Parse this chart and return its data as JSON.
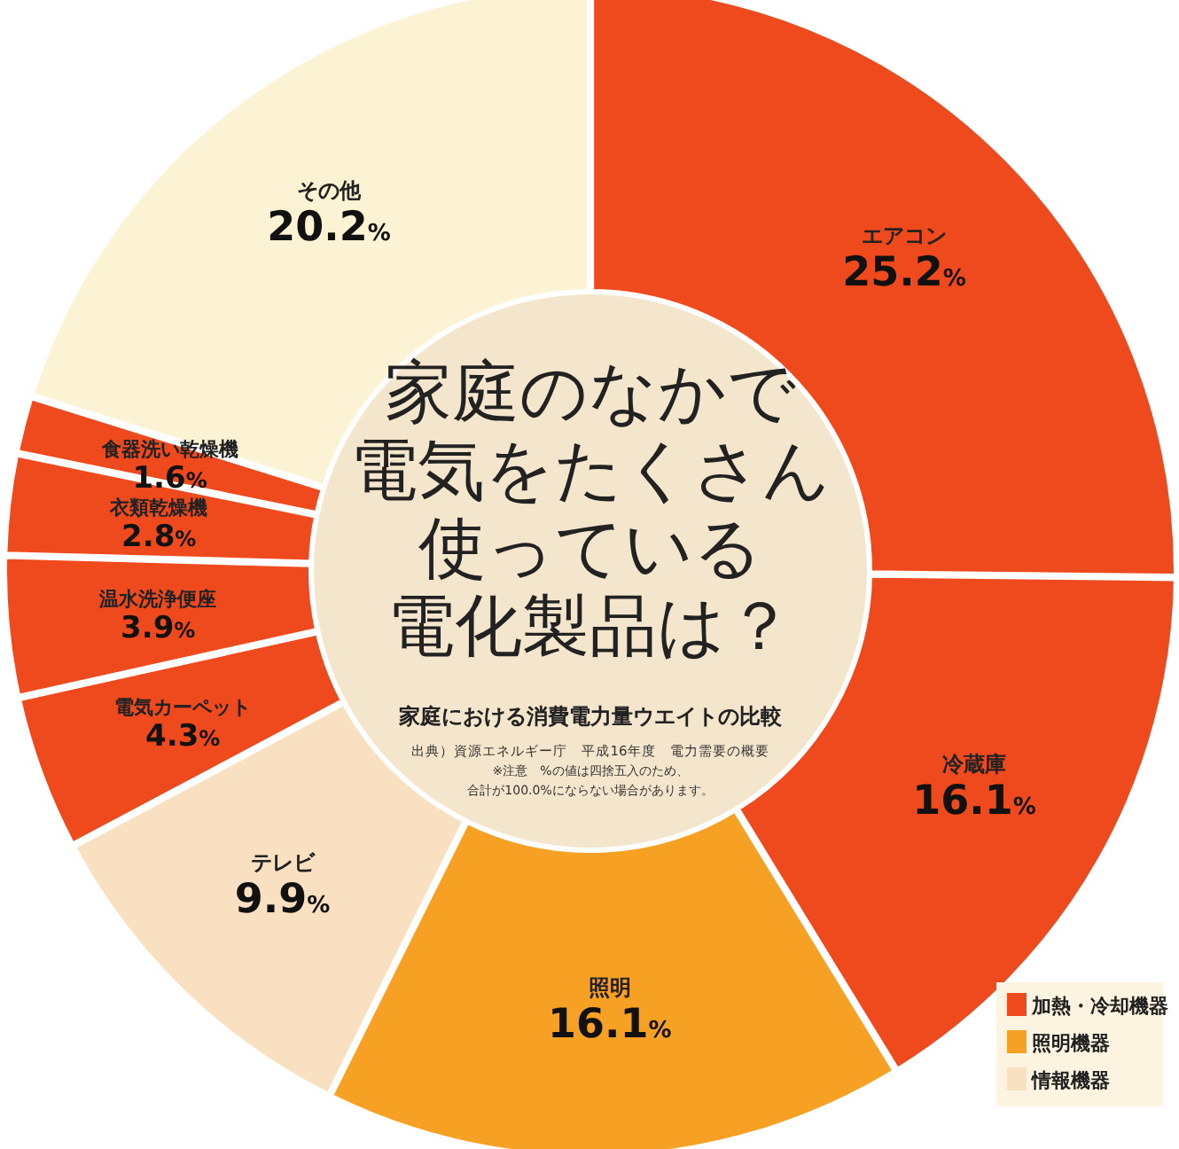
{
  "chart_data": {
    "type": "donut",
    "title": "家庭のなかで電気をたくさん使っている電化製品は？",
    "subtitle": "家庭における消費電力量ウエイトの比較",
    "annotations": [
      "加熱・冷却機器",
      "照明機器",
      "情報機器",
      "出典）資源エネルギー庁　平成16年度　電力需要の概要",
      "※注意　%の値は四捨五入のため、合計が100.0%にならない場合があります。"
    ],
    "categories": [
      "エアコン",
      "冷蔵庫",
      "照明",
      "テレビ",
      "電気カーペット",
      "温水洗浄便座",
      "衣類乾燥機",
      "食器洗い乾燥機",
      "その他"
    ],
    "values": [
      25.2,
      16.1,
      16.1,
      9.9,
      4.3,
      3.9,
      2.8,
      1.6,
      20.2
    ],
    "value_labels": [
      "25.2%",
      "16.1%",
      "16.1%",
      "9.9%",
      "4.3%",
      "3.9%",
      "2.8%",
      "1.6%",
      "20.2%"
    ],
    "colors": [
      "#ee4a1e",
      "#ee4a1e",
      "#f6a123",
      "#f8e0c0",
      "#ee4a1e",
      "#ee4a1e",
      "#ee4a1e",
      "#ee4a1e",
      "#fcf2d4"
    ]
  }
}
